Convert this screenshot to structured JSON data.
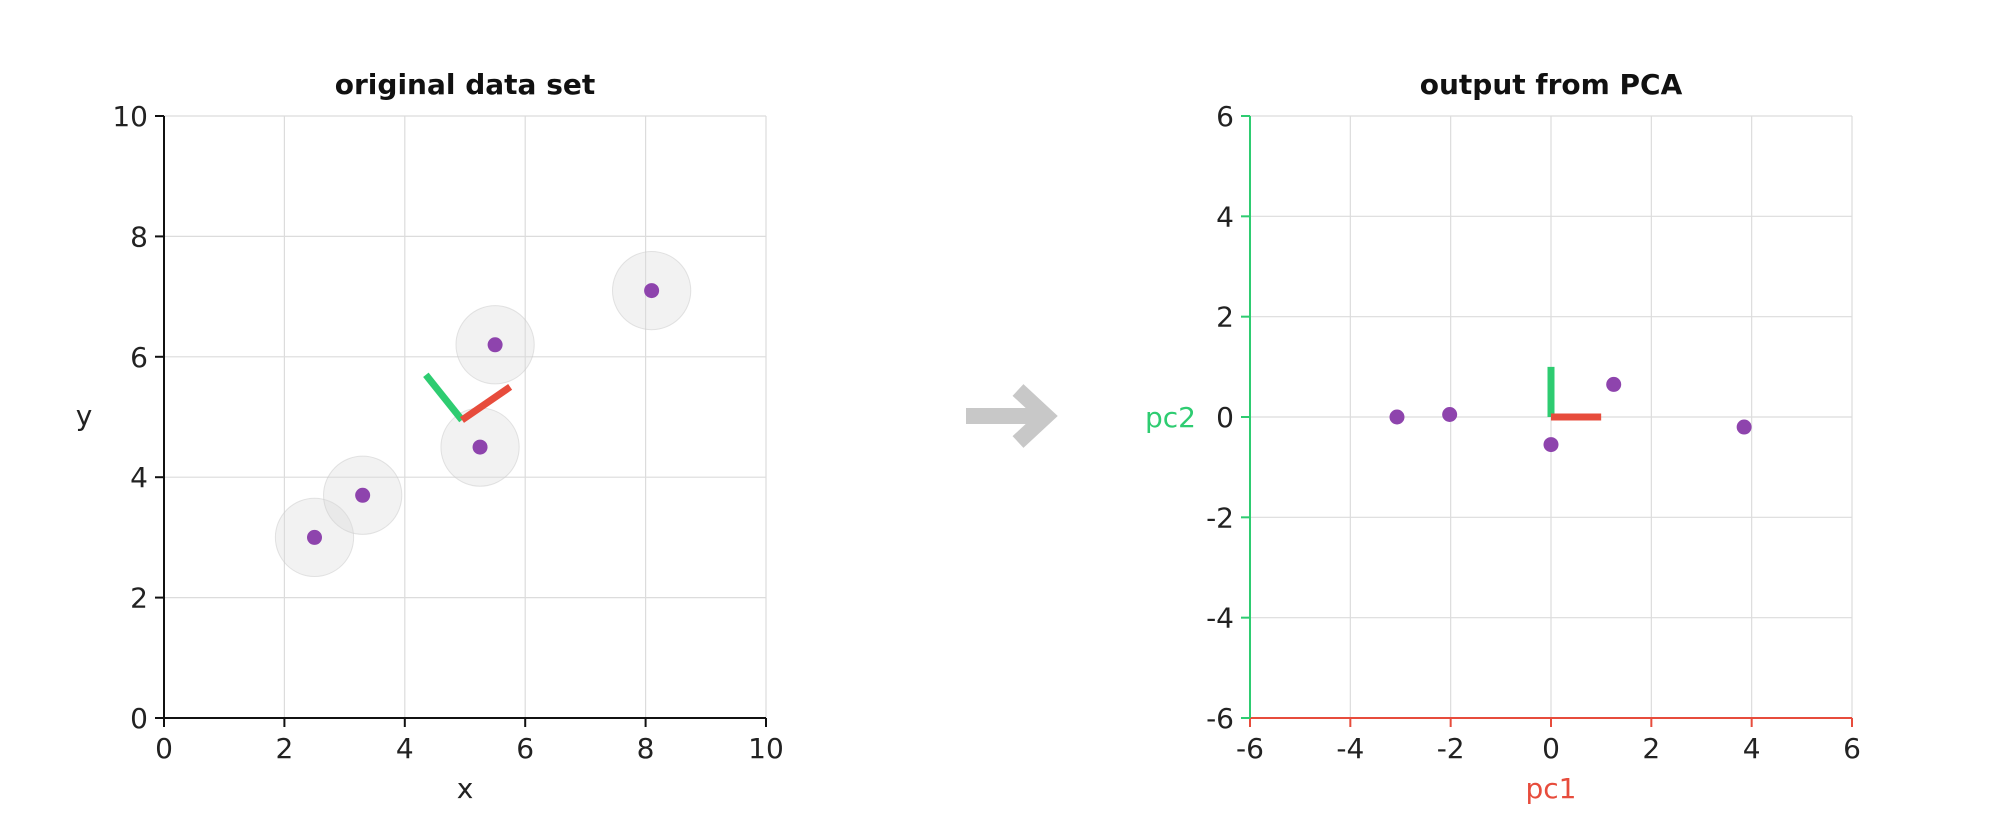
{
  "colors": {
    "point": "#8e44ad",
    "pc1": "#e74c3c",
    "pc2": "#2ecc71",
    "halo": "#d9d9d9",
    "arrow": "#c8c8c8",
    "grid": "#dcdcdc"
  },
  "chart_data": [
    {
      "type": "scatter",
      "title": "original data set",
      "xlabel": "x",
      "ylabel": "y",
      "xlim": [
        0,
        10
      ],
      "ylim": [
        0,
        10
      ],
      "xticks": [
        0,
        2,
        4,
        6,
        8,
        10
      ],
      "yticks": [
        0,
        2,
        4,
        6,
        8,
        10
      ],
      "grid": true,
      "points": [
        {
          "x": 2.5,
          "y": 3.0
        },
        {
          "x": 3.3,
          "y": 3.7
        },
        {
          "x": 5.25,
          "y": 4.5
        },
        {
          "x": 5.5,
          "y": 6.2
        },
        {
          "x": 8.1,
          "y": 7.1
        }
      ],
      "halo_radius": 0.65,
      "principal_axes": {
        "origin": {
          "x": 4.95,
          "y": 4.95
        },
        "pc1_end": {
          "x": 5.75,
          "y": 5.5
        },
        "pc2_end": {
          "x": 4.35,
          "y": 5.7
        }
      }
    },
    {
      "type": "scatter",
      "title": "output from PCA",
      "xlabel": "pc1",
      "ylabel": "pc2",
      "xlim": [
        -6,
        6
      ],
      "ylim": [
        -6,
        6
      ],
      "xticks": [
        -6,
        -4,
        -2,
        0,
        2,
        4,
        6
      ],
      "yticks": [
        -6,
        -4,
        -2,
        0,
        2,
        4,
        6
      ],
      "grid": true,
      "points": [
        {
          "x": -3.07,
          "y": 0.0
        },
        {
          "x": -2.02,
          "y": 0.05
        },
        {
          "x": 0.0,
          "y": -0.55
        },
        {
          "x": 1.25,
          "y": 0.65
        },
        {
          "x": 3.85,
          "y": -0.2
        }
      ],
      "principal_axes": {
        "origin": {
          "x": 0,
          "y": 0
        },
        "pc1_end": {
          "x": 1.0,
          "y": 0
        },
        "pc2_end": {
          "x": 0,
          "y": 1.0
        }
      }
    }
  ]
}
